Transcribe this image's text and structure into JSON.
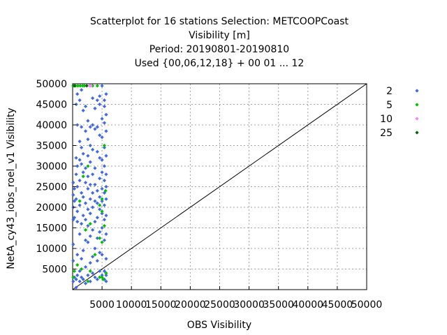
{
  "chart_data": {
    "type": "scatter",
    "title_lines": [
      "Scatterplot for   16 stations Selection: METCOOPCoast",
      "Visibility [m]",
      "Period: 20190801-20190810",
      "Used {00,06,12,18} + 00 01 ... 12"
    ],
    "xlabel": "OBS Visibility",
    "ylabel": "NetA_cy43_iobs_roel_v1 Visibility",
    "xlim": [
      0,
      50000
    ],
    "ylim": [
      0,
      50000
    ],
    "x_ticks": [
      5000,
      10000,
      15000,
      20000,
      25000,
      30000,
      35000,
      40000,
      45000,
      50000
    ],
    "y_ticks": [
      5000,
      10000,
      15000,
      20000,
      25000,
      30000,
      35000,
      40000,
      45000,
      50000
    ],
    "x_tick_labels": [
      "5000",
      "10000",
      "15000",
      "20000",
      "25000",
      "30000",
      "35000",
      "40000",
      "45000",
      "50000"
    ],
    "y_tick_labels": [
      "5000",
      "10000",
      "15000",
      "20000",
      "25000",
      "30000",
      "35000",
      "40000",
      "45000",
      "50000"
    ],
    "grid": true,
    "legend_position": "right",
    "diagonal": [
      [
        0,
        0
      ],
      [
        50000,
        50000
      ]
    ],
    "series": [
      {
        "name": "2",
        "color": "#4169e1",
        "points": [
          [
            100,
            2000
          ],
          [
            100,
            7000
          ],
          [
            100,
            11000
          ],
          [
            100,
            17000
          ],
          [
            100,
            20000
          ],
          [
            100,
            23000
          ],
          [
            100,
            26000
          ],
          [
            100,
            49500
          ],
          [
            300,
            3000
          ],
          [
            300,
            17500
          ],
          [
            300,
            21500
          ],
          [
            300,
            24500
          ],
          [
            600,
            500
          ],
          [
            600,
            2500
          ],
          [
            600,
            22000
          ],
          [
            600,
            28000
          ],
          [
            600,
            32000
          ],
          [
            600,
            45000
          ],
          [
            800,
            3500
          ],
          [
            800,
            8500
          ],
          [
            800,
            16500
          ],
          [
            800,
            19000
          ],
          [
            800,
            25000
          ],
          [
            800,
            30000
          ],
          [
            800,
            40000
          ],
          [
            800,
            47500
          ],
          [
            1200,
            2000
          ],
          [
            1200,
            4500
          ],
          [
            1200,
            13500
          ],
          [
            1200,
            20500
          ],
          [
            1200,
            26500
          ],
          [
            1200,
            31500
          ],
          [
            1200,
            36000
          ],
          [
            1200,
            46000
          ],
          [
            1500,
            3000
          ],
          [
            1500,
            7500
          ],
          [
            1500,
            16000
          ],
          [
            1500,
            23500
          ],
          [
            1500,
            30500
          ],
          [
            1500,
            34500
          ],
          [
            1500,
            39500
          ],
          [
            1500,
            48500
          ],
          [
            1800,
            2500
          ],
          [
            1800,
            9500
          ],
          [
            1800,
            18000
          ],
          [
            1800,
            22500
          ],
          [
            1800,
            28500
          ],
          [
            1800,
            33000
          ],
          [
            1800,
            43500
          ],
          [
            2200,
            1500
          ],
          [
            2200,
            5500
          ],
          [
            2200,
            12000
          ],
          [
            2200,
            17000
          ],
          [
            2200,
            21000
          ],
          [
            2200,
            26000
          ],
          [
            2200,
            29500
          ],
          [
            2200,
            38500
          ],
          [
            2200,
            44500
          ],
          [
            2600,
            3500
          ],
          [
            2600,
            11500
          ],
          [
            2600,
            15500
          ],
          [
            2600,
            19500
          ],
          [
            2600,
            24500
          ],
          [
            2600,
            27500
          ],
          [
            2600,
            32500
          ],
          [
            2600,
            36500
          ],
          [
            2600,
            41000
          ],
          [
            3000,
            2000
          ],
          [
            3000,
            6500
          ],
          [
            3000,
            13000
          ],
          [
            3000,
            18500
          ],
          [
            3000,
            22000
          ],
          [
            3000,
            25500
          ],
          [
            3000,
            31000
          ],
          [
            3000,
            35000
          ],
          [
            3000,
            39500
          ],
          [
            3400,
            4000
          ],
          [
            3400,
            8000
          ],
          [
            3400,
            14500
          ],
          [
            3400,
            20000
          ],
          [
            3400,
            23500
          ],
          [
            3400,
            28000
          ],
          [
            3400,
            34000
          ],
          [
            3400,
            40000
          ],
          [
            3400,
            46500
          ],
          [
            3800,
            3000
          ],
          [
            3800,
            10000
          ],
          [
            3800,
            16500
          ],
          [
            3800,
            21500
          ],
          [
            3800,
            25500
          ],
          [
            3800,
            29500
          ],
          [
            3800,
            39000
          ],
          [
            3800,
            44000
          ],
          [
            4200,
            2500
          ],
          [
            4200,
            7000
          ],
          [
            4200,
            12500
          ],
          [
            4200,
            17500
          ],
          [
            4200,
            21000
          ],
          [
            4200,
            24000
          ],
          [
            4200,
            33500
          ],
          [
            4200,
            39500
          ],
          [
            4200,
            46000
          ],
          [
            4600,
            4500
          ],
          [
            4600,
            9000
          ],
          [
            4600,
            14000
          ],
          [
            4600,
            19500
          ],
          [
            4600,
            22500
          ],
          [
            4600,
            27000
          ],
          [
            4600,
            32000
          ],
          [
            4600,
            37500
          ],
          [
            4600,
            45000
          ],
          [
            4600,
            47000
          ],
          [
            5000,
            3500
          ],
          [
            5000,
            8500
          ],
          [
            5000,
            15000
          ],
          [
            5000,
            18500
          ],
          [
            5000,
            21500
          ],
          [
            5000,
            24500
          ],
          [
            5000,
            28500
          ],
          [
            5000,
            31500
          ],
          [
            5000,
            37000
          ],
          [
            5000,
            41500
          ],
          [
            5000,
            49500
          ],
          [
            5400,
            2500
          ],
          [
            5400,
            4500
          ],
          [
            5400,
            12000
          ],
          [
            5400,
            17000
          ],
          [
            5400,
            20500
          ],
          [
            5400,
            23500
          ],
          [
            5400,
            26500
          ],
          [
            5400,
            30000
          ],
          [
            5400,
            34500
          ],
          [
            5400,
            40500
          ],
          [
            5400,
            44500
          ],
          [
            5400,
            46000
          ],
          [
            5700,
            2000
          ],
          [
            5700,
            3500
          ],
          [
            5700,
            7500
          ],
          [
            5700,
            13500
          ],
          [
            5700,
            18000
          ],
          [
            5700,
            22000
          ],
          [
            5700,
            25000
          ],
          [
            5700,
            28000
          ],
          [
            5700,
            32500
          ],
          [
            5700,
            38500
          ],
          [
            5700,
            42500
          ],
          [
            5700,
            47500
          ]
        ]
      },
      {
        "name": "5",
        "color": "#00c000",
        "points": [
          [
            100,
            3000
          ],
          [
            100,
            49500
          ],
          [
            300,
            4500
          ],
          [
            500,
            49500
          ],
          [
            800,
            6000
          ],
          [
            900,
            49500
          ],
          [
            1200,
            21500
          ],
          [
            1300,
            49500
          ],
          [
            1500,
            5000
          ],
          [
            1700,
            49500
          ],
          [
            1800,
            27500
          ],
          [
            2000,
            49500
          ],
          [
            2200,
            14500
          ],
          [
            2600,
            2000
          ],
          [
            2600,
            30000
          ],
          [
            3000,
            4500
          ],
          [
            3000,
            16000
          ],
          [
            3400,
            49500
          ],
          [
            3800,
            8500
          ],
          [
            4200,
            49500
          ],
          [
            4600,
            3000
          ],
          [
            4600,
            12500
          ],
          [
            4600,
            20500
          ],
          [
            5000,
            3000
          ],
          [
            5000,
            11500
          ],
          [
            5000,
            19000
          ],
          [
            5000,
            22000
          ],
          [
            5200,
            2500
          ],
          [
            5400,
            15500
          ],
          [
            5400,
            35000
          ],
          [
            5600,
            24000
          ],
          [
            5700,
            4000
          ]
        ]
      },
      {
        "name": "10",
        "color": "#ff80ff",
        "points": [
          [
            2900,
            49500
          ],
          [
            3100,
            49500
          ]
        ]
      },
      {
        "name": "25",
        "color": "#006400",
        "points": [
          [
            300,
            49500
          ],
          [
            2400,
            49500
          ]
        ]
      }
    ]
  }
}
